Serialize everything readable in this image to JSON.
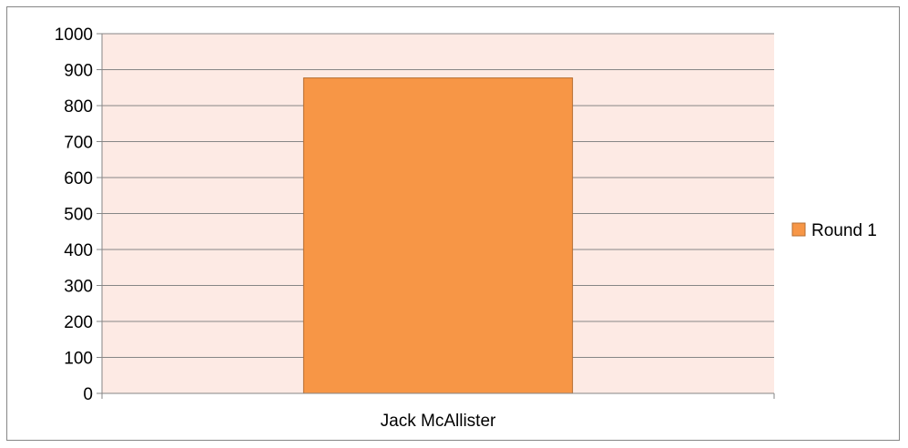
{
  "chart_data": {
    "type": "bar",
    "title": "",
    "xlabel": "",
    "ylabel": "",
    "categories": [
      "Jack McAllister"
    ],
    "series": [
      {
        "name": "Round 1",
        "values": [
          877
        ]
      }
    ],
    "ylim": [
      0,
      1000
    ],
    "yticks": [
      0,
      100,
      200,
      300,
      400,
      500,
      600,
      700,
      800,
      900,
      1000
    ],
    "grid": true,
    "legend_position": "right",
    "colors": {
      "plot_background": "#fdeae4",
      "bar_fill": "#f79646",
      "bar_stroke": "#b66d31",
      "gridline": "#868686",
      "axis": "#868686"
    }
  }
}
